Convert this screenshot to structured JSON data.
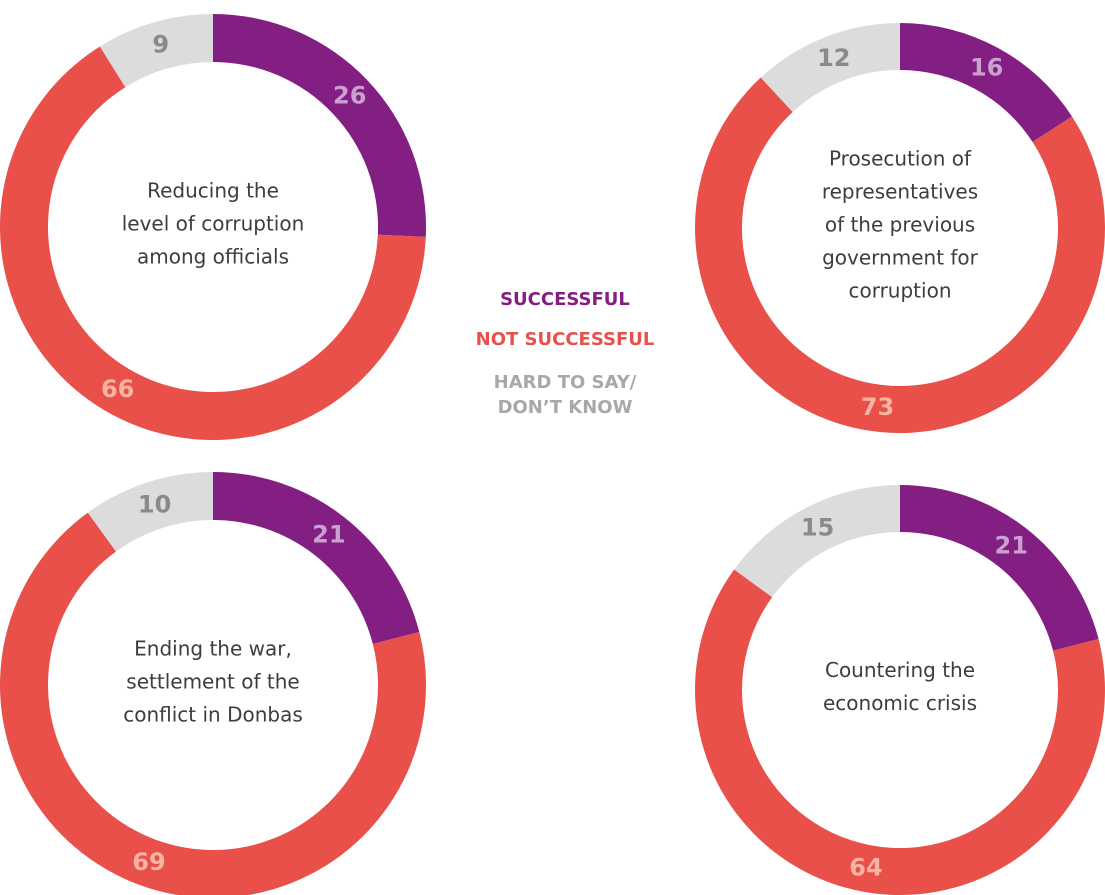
{
  "legend": [
    {
      "label_lines": [
        "SUCCESSFUL"
      ],
      "color": "#831f82",
      "value_color": "#caa0d0"
    },
    {
      "label_lines": [
        "NOT SUCCESSFUL"
      ],
      "color": "#e9504a",
      "value_color": "#f8b4a2"
    },
    {
      "label_lines": [
        "HARD TO SAY/",
        "DON’T KNOW"
      ],
      "color": "#dcdcdc",
      "value_color": "#8a8a8a",
      "text_color": "#a8a8a8"
    }
  ],
  "chart_data": [
    {
      "type": "donut",
      "title_lines": [
        "Reducing the",
        "level of corruption",
        "among officials"
      ],
      "values": [
        26,
        66,
        9
      ]
    },
    {
      "type": "donut",
      "title_lines": [
        "Prosecution of",
        "representatives",
        "of the previous",
        "government for",
        "corruption"
      ],
      "values": [
        16,
        73,
        12
      ]
    },
    {
      "type": "donut",
      "title_lines": [
        "Ending the war,",
        "settlement of the",
        "conflict in Donbas"
      ],
      "values": [
        21,
        69,
        10
      ]
    },
    {
      "type": "donut",
      "title_lines": [
        "Countering the",
        "economic crisis"
      ],
      "values": [
        21,
        64,
        15
      ]
    }
  ]
}
